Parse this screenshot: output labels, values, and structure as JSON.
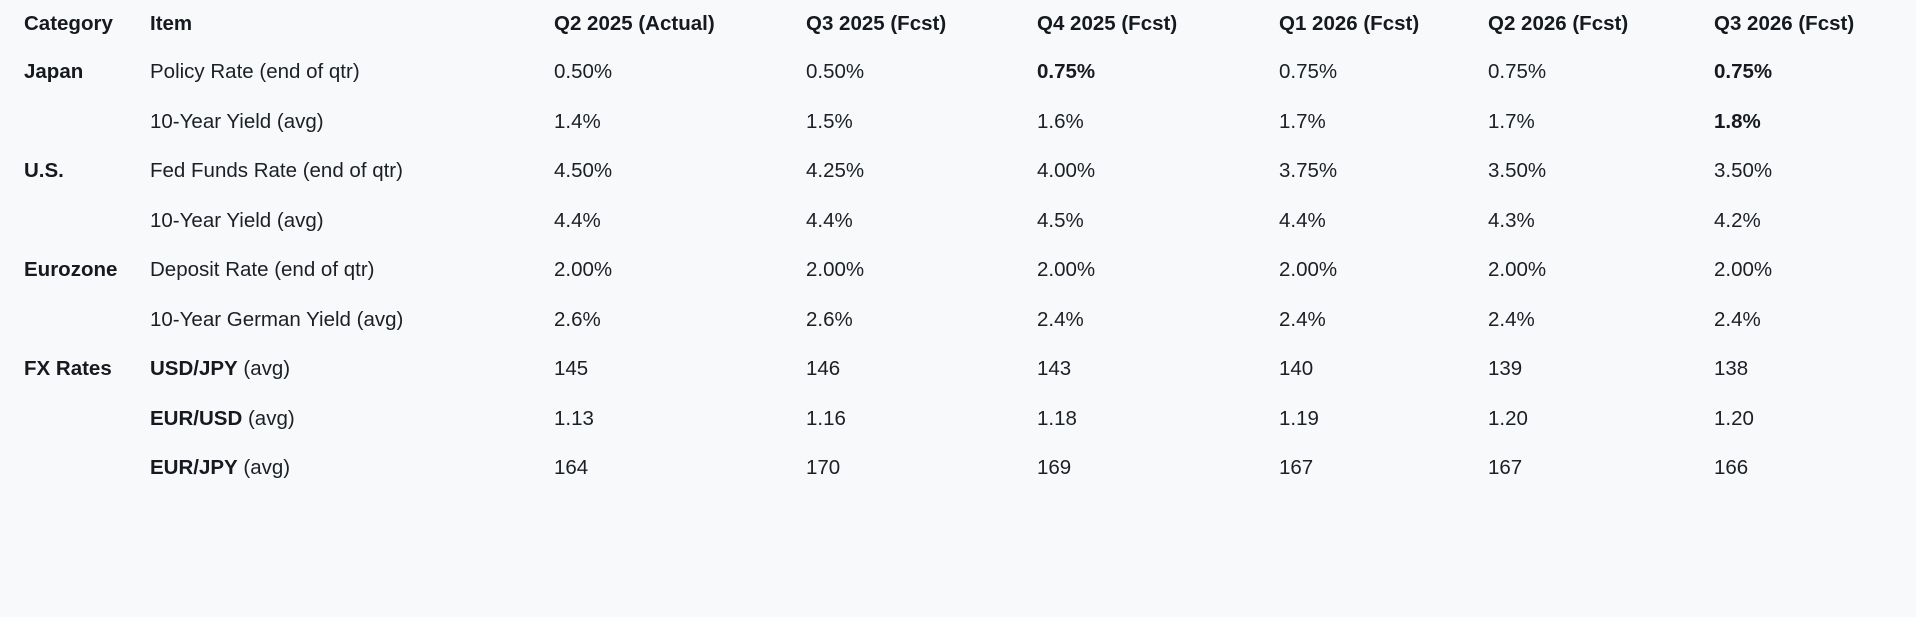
{
  "colors": {
    "background": "#f8f9fa",
    "text": "#1b1f26",
    "text_strong": "#16191f"
  },
  "table": {
    "columns": [
      "Category",
      "Item",
      "Q2 2025 (Actual)",
      "Q3 2025 (Fcst)",
      "Q4 2025 (Fcst)",
      "Q1 2026 (Fcst)",
      "Q2 2026 (Fcst)",
      "Q3 2026 (Fcst)"
    ],
    "rows": [
      {
        "category": "Japan",
        "item_strong": "",
        "item_rest": "Policy Rate (end of qtr)",
        "values": [
          "0.50%",
          "0.50%",
          "0.75%",
          "0.75%",
          "0.75%",
          "0.75%"
        ],
        "bold": [
          false,
          false,
          true,
          false,
          false,
          true
        ]
      },
      {
        "category": "",
        "item_strong": "",
        "item_rest": "10-Year Yield (avg)",
        "values": [
          "1.4%",
          "1.5%",
          "1.6%",
          "1.7%",
          "1.7%",
          "1.8%"
        ],
        "bold": [
          false,
          false,
          false,
          false,
          false,
          true
        ]
      },
      {
        "category": "U.S.",
        "item_strong": "",
        "item_rest": "Fed Funds Rate (end of qtr)",
        "values": [
          "4.50%",
          "4.25%",
          "4.00%",
          "3.75%",
          "3.50%",
          "3.50%"
        ],
        "bold": [
          false,
          false,
          false,
          false,
          false,
          false
        ]
      },
      {
        "category": "",
        "item_strong": "",
        "item_rest": "10-Year Yield (avg)",
        "values": [
          "4.4%",
          "4.4%",
          "4.5%",
          "4.4%",
          "4.3%",
          "4.2%"
        ],
        "bold": [
          false,
          false,
          false,
          false,
          false,
          false
        ]
      },
      {
        "category": "Eurozone",
        "item_strong": "",
        "item_rest": "Deposit Rate (end of qtr)",
        "values": [
          "2.00%",
          "2.00%",
          "2.00%",
          "2.00%",
          "2.00%",
          "2.00%"
        ],
        "bold": [
          false,
          false,
          false,
          false,
          false,
          false
        ]
      },
      {
        "category": "",
        "item_strong": "",
        "item_rest": "10-Year German Yield (avg)",
        "values": [
          "2.6%",
          "2.6%",
          "2.4%",
          "2.4%",
          "2.4%",
          "2.4%"
        ],
        "bold": [
          false,
          false,
          false,
          false,
          false,
          false
        ]
      },
      {
        "category": "FX Rates",
        "item_strong": "USD/JPY",
        "item_rest": " (avg)",
        "values": [
          "145",
          "146",
          "143",
          "140",
          "139",
          "138"
        ],
        "bold": [
          false,
          false,
          false,
          false,
          false,
          false
        ]
      },
      {
        "category": "",
        "item_strong": "EUR/USD",
        "item_rest": " (avg)",
        "values": [
          "1.13",
          "1.16",
          "1.18",
          "1.19",
          "1.20",
          "1.20"
        ],
        "bold": [
          false,
          false,
          false,
          false,
          false,
          false
        ]
      },
      {
        "category": "",
        "item_strong": "EUR/JPY",
        "item_rest": " (avg)",
        "values": [
          "164",
          "170",
          "169",
          "167",
          "167",
          "166"
        ],
        "bold": [
          false,
          false,
          false,
          false,
          false,
          false
        ]
      }
    ]
  }
}
